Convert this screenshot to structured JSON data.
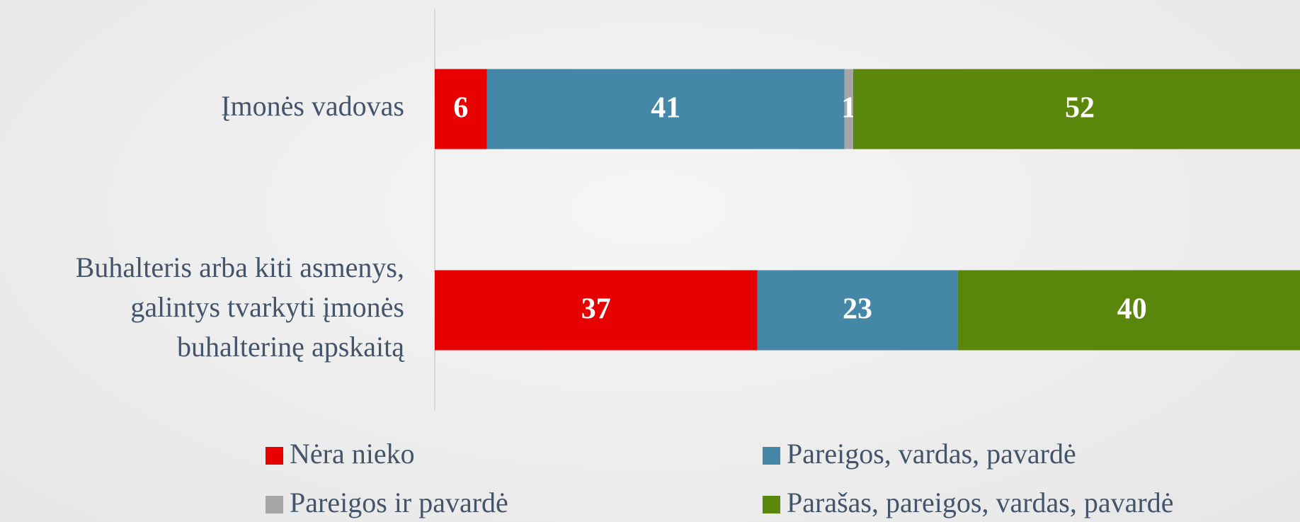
{
  "chart_data": {
    "type": "stacked-bar-horizontal",
    "categories": [
      "Įmonės vadovas",
      "Buhalteris arba kiti asmenys,\ngalintys tvarkyti įmonės\nbuhalterinę apskaitą"
    ],
    "series": [
      {
        "name": "Nėra nieko",
        "color": "#e60000",
        "values": [
          6,
          37
        ]
      },
      {
        "name": "Pareigos, vardas, pavardė",
        "color": "#4587a6",
        "values": [
          41,
          23
        ]
      },
      {
        "name": "Pareigos ir pavardė",
        "color": "#a6a6a6",
        "values": [
          1,
          0
        ]
      },
      {
        "name": "Parašas, pareigos, vardas, pavardė",
        "color": "#5a870b",
        "values": [
          52,
          40
        ]
      }
    ],
    "xlim": [
      0,
      100
    ],
    "legend": "bottom"
  }
}
